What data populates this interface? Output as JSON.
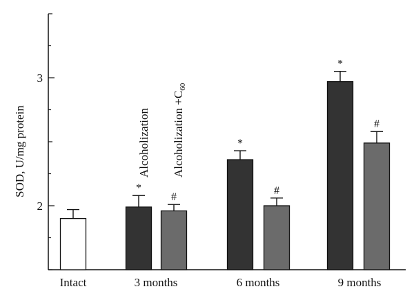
{
  "chart_data": {
    "type": "bar",
    "title": "",
    "xlabel": "",
    "ylabel": "SOD, U/mg protein",
    "ylim": [
      1.5,
      3.5
    ],
    "yticks": [
      2,
      3
    ],
    "grid": false,
    "categories": [
      "Intact",
      "3 months",
      "6 months",
      "9 months"
    ],
    "series": [
      {
        "name": "Alcoholization",
        "color": "#333333",
        "values": [
          1.9,
          1.99,
          2.36,
          2.97
        ],
        "errors": [
          0.07,
          0.09,
          0.07,
          0.08
        ],
        "marks": [
          "",
          "*",
          "*",
          "*"
        ]
      },
      {
        "name": "Alcoholization +C60",
        "color": "#6b6b6b",
        "values": [
          null,
          1.96,
          2.0,
          2.49
        ],
        "errors": [
          null,
          0.05,
          0.06,
          0.09
        ],
        "marks": [
          "",
          "#",
          "#",
          "#"
        ]
      }
    ],
    "intact_color": "#ffffff",
    "series_label_text": [
      "Alcoholization",
      "Alcoholization +C",
      "60"
    ]
  }
}
